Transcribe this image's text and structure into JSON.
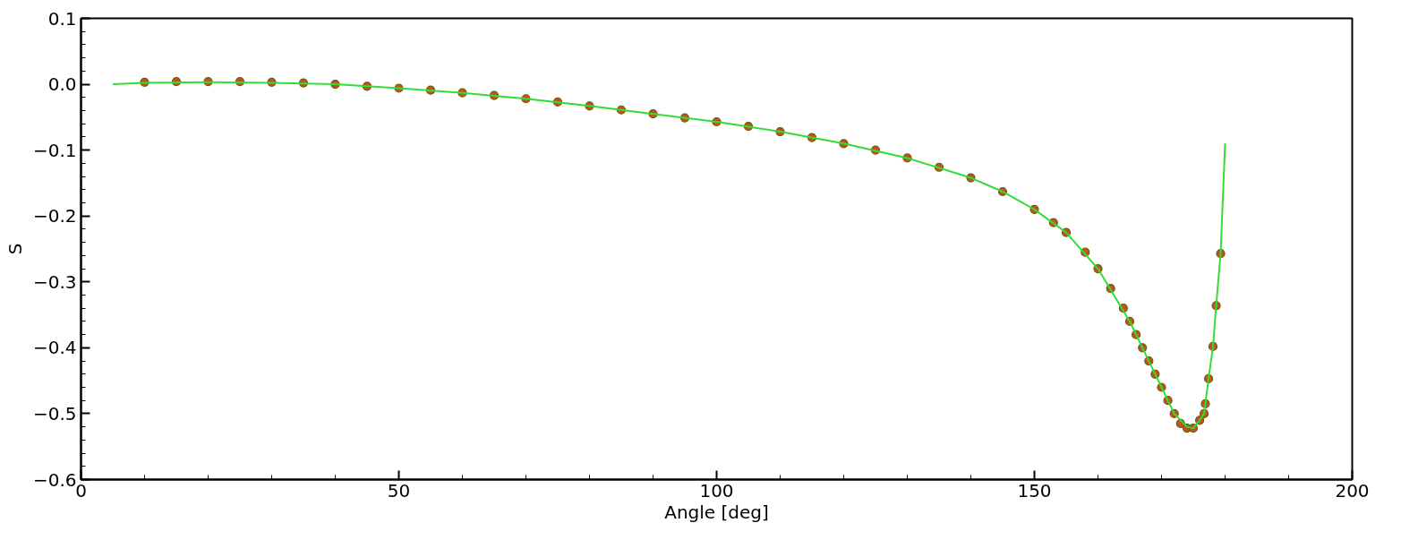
{
  "chart_data": {
    "type": "scatter",
    "xlabel": "Angle [deg]",
    "ylabel": "S",
    "xlim": [
      0,
      200
    ],
    "xticks": [
      0,
      50,
      100,
      150,
      200
    ],
    "ylim": [
      -0.6,
      0.1
    ],
    "yticks": [
      {
        "value": 0.1,
        "label": "0.1"
      },
      {
        "value": 0.0,
        "label": "0.0"
      },
      {
        "value": -0.1,
        "label": "−0.1"
      },
      {
        "value": -0.2,
        "label": "−0.2"
      },
      {
        "value": -0.3,
        "label": "−0.3"
      },
      {
        "value": -0.4,
        "label": "−0.4"
      },
      {
        "value": -0.5,
        "label": "−0.5"
      },
      {
        "value": -0.6,
        "label": "−0.6"
      }
    ],
    "grid": false,
    "series": [
      {
        "marker": "circle",
        "color": "#c4521f",
        "x": [
          10,
          15,
          20,
          25,
          30,
          35,
          40,
          45,
          50,
          55,
          60,
          65,
          70,
          75,
          80,
          85,
          90,
          95,
          100,
          105,
          110,
          115,
          120,
          125,
          130,
          135,
          140,
          145,
          150,
          153,
          155,
          158,
          160,
          162,
          164,
          165,
          166,
          167,
          168,
          169,
          170,
          171,
          172,
          173,
          174,
          175,
          176,
          176.7,
          176.9,
          177.4,
          178.1,
          178.6,
          179.3
        ],
        "values": [
          0.003,
          0.004,
          0.004,
          0.004,
          0.003,
          0.002,
          0.0,
          -0.003,
          -0.006,
          -0.009,
          -0.013,
          -0.017,
          -0.022,
          -0.027,
          -0.033,
          -0.039,
          -0.045,
          -0.051,
          -0.057,
          -0.064,
          -0.072,
          -0.081,
          -0.09,
          -0.1,
          -0.112,
          -0.126,
          -0.142,
          -0.163,
          -0.19,
          -0.21,
          -0.225,
          -0.255,
          -0.28,
          -0.31,
          -0.34,
          -0.36,
          -0.38,
          -0.4,
          -0.42,
          -0.44,
          -0.46,
          -0.48,
          -0.5,
          -0.515,
          -0.522,
          -0.522,
          -0.51,
          -0.5,
          -0.485,
          -0.447,
          -0.398,
          -0.336,
          -0.257
        ]
      },
      {
        "type": "line",
        "marker": "none",
        "line_style": "solid",
        "color": "#33dd33",
        "x": [
          5,
          10,
          20,
          30,
          40,
          50,
          60,
          70,
          80,
          90,
          100,
          110,
          120,
          130,
          140,
          145,
          150,
          155,
          160,
          165,
          168,
          170,
          172,
          174,
          175,
          176,
          176.7,
          177.4,
          178.1,
          178.6,
          179.3,
          180
        ],
        "values": [
          0.0,
          0.002,
          0.003,
          0.002,
          0.0,
          -0.006,
          -0.013,
          -0.022,
          -0.033,
          -0.045,
          -0.057,
          -0.072,
          -0.09,
          -0.112,
          -0.142,
          -0.163,
          -0.19,
          -0.225,
          -0.28,
          -0.36,
          -0.42,
          -0.46,
          -0.5,
          -0.52,
          -0.522,
          -0.51,
          -0.5,
          -0.447,
          -0.398,
          -0.336,
          -0.257,
          -0.09
        ]
      }
    ]
  }
}
